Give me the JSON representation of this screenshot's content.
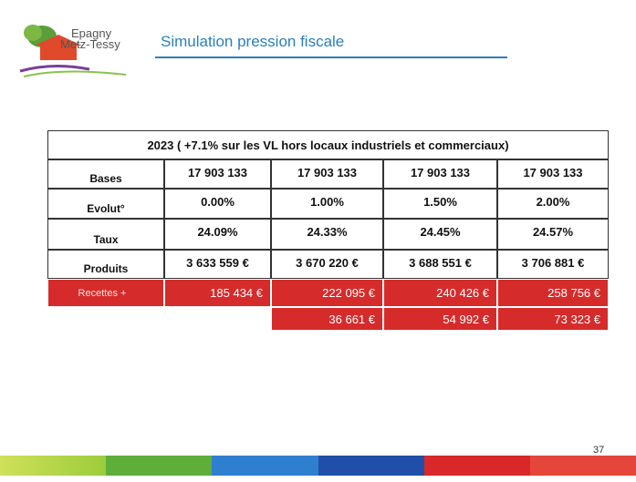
{
  "logo": {
    "line1": "Epagny",
    "line2": "Metz-Tessy"
  },
  "title": "Simulation pression fiscale",
  "table": {
    "header": "2023 ( +7.1% sur les VL hors locaux industriels et commerciaux)",
    "rows": [
      {
        "label": "Bases",
        "cells": [
          "17 903 133",
          "17 903 133",
          "17 903 133",
          "17 903 133"
        ]
      },
      {
        "label": "Evolut°",
        "cells": [
          "0.00%",
          "1.00%",
          "1.50%",
          "2.00%"
        ]
      },
      {
        "label": "Taux",
        "cells": [
          "24.09%",
          "24.33%",
          "24.45%",
          "24.57%"
        ]
      },
      {
        "label": "Produits",
        "cells": [
          "3 633 559 €",
          "3 670 220 €",
          "3 688 551 €",
          "3 706 881 €"
        ]
      }
    ],
    "recettes": {
      "label": "Recettes +",
      "cells": [
        "185 434 €",
        "222 095 €",
        "240 426 €",
        "258 756 €"
      ]
    },
    "differences": [
      "36 661 €",
      "54 992 €",
      "73 323 €"
    ]
  },
  "page_number": "37"
}
